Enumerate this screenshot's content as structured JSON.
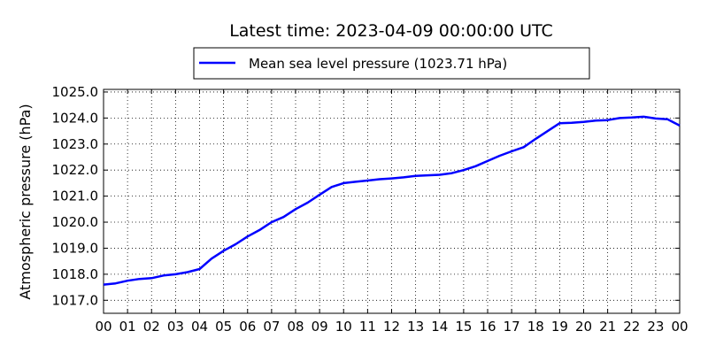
{
  "chart_data": {
    "type": "line",
    "title": "Latest time: 2023-04-09 00:00:00 UTC",
    "xlabel": "",
    "ylabel": "Atmospheric pressure (hPa)",
    "xlim": [
      0,
      24
    ],
    "ylim": [
      1016.5,
      1025.1
    ],
    "grid": true,
    "legend_position": "top-center",
    "x_tick_labels": [
      "00",
      "01",
      "02",
      "03",
      "04",
      "05",
      "06",
      "07",
      "08",
      "09",
      "10",
      "11",
      "12",
      "13",
      "14",
      "15",
      "16",
      "17",
      "18",
      "19",
      "20",
      "21",
      "22",
      "23",
      "00"
    ],
    "y_ticks": [
      1017.0,
      1018.0,
      1019.0,
      1020.0,
      1021.0,
      1022.0,
      1023.0,
      1024.0,
      1025.0
    ],
    "y_tick_labels": [
      "1017.0",
      "1018.0",
      "1019.0",
      "1020.0",
      "1021.0",
      "1022.0",
      "1023.0",
      "1024.0",
      "1025.0"
    ],
    "series": [
      {
        "name": "Mean sea level pressure (1023.71 hPa)",
        "color": "#0000ff",
        "x": [
          0,
          0.5,
          1,
          1.5,
          2,
          2.5,
          3,
          3.5,
          4,
          4.5,
          5,
          5.5,
          6,
          6.5,
          7,
          7.5,
          8,
          8.5,
          9,
          9.5,
          10,
          10.5,
          11,
          11.5,
          12,
          12.5,
          13,
          13.5,
          14,
          14.5,
          15,
          15.5,
          16,
          16.5,
          17,
          17.5,
          18,
          18.5,
          19,
          19.5,
          20,
          20.5,
          21,
          21.5,
          22,
          22.5,
          23,
          23.5,
          24
        ],
        "y": [
          1017.6,
          1017.65,
          1017.75,
          1017.82,
          1017.85,
          1017.95,
          1018.0,
          1018.08,
          1018.2,
          1018.6,
          1018.9,
          1019.15,
          1019.45,
          1019.7,
          1020.0,
          1020.2,
          1020.5,
          1020.75,
          1021.05,
          1021.35,
          1021.5,
          1021.55,
          1021.6,
          1021.65,
          1021.68,
          1021.72,
          1021.78,
          1021.8,
          1021.82,
          1021.88,
          1022.0,
          1022.15,
          1022.35,
          1022.55,
          1022.72,
          1022.88,
          1023.2,
          1023.5,
          1023.8,
          1023.82,
          1023.85,
          1023.9,
          1023.92,
          1024.0,
          1024.02,
          1024.05,
          1023.98,
          1023.95,
          1023.71
        ]
      }
    ]
  }
}
